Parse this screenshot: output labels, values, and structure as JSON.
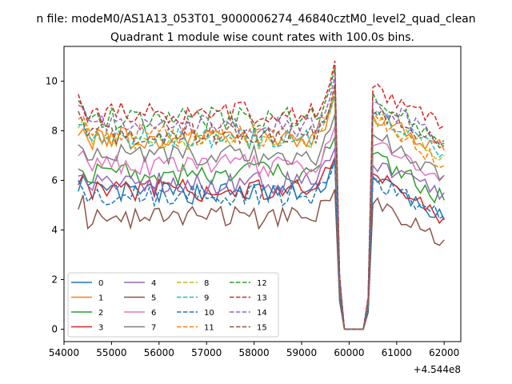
{
  "suptitle": "n file: modeM0/AS1A13_053T01_9000006274_46840cztM0_level2_quad_clean",
  "chart_data": {
    "type": "line",
    "title": "Quadrant 1 module wise count rates with 100.0s bins.",
    "xlabel": "",
    "ylabel": "",
    "x_offset_label": "+4.544e8",
    "xlim": [
      54000,
      62350
    ],
    "ylim": [
      -0.5,
      11.4
    ],
    "xticks": [
      54000,
      55000,
      56000,
      57000,
      58000,
      59000,
      60000,
      61000,
      62000
    ],
    "xtick_labels": [
      "54000",
      "55000",
      "56000",
      "57000",
      "58000",
      "59000",
      "60000",
      "61000",
      "62000"
    ],
    "yticks": [
      0,
      2,
      4,
      6,
      8,
      10
    ],
    "ytick_labels": [
      "0",
      "2",
      "4",
      "6",
      "8",
      "10"
    ],
    "grid": false,
    "legend_position": "lower-left",
    "legend_columns": 4,
    "series": [
      {
        "name": "0",
        "color": "#1f77b4",
        "dash": "solid",
        "base": 5.5,
        "end": 4.4
      },
      {
        "name": "1",
        "color": "#ff7f0e",
        "dash": "solid",
        "base": 7.7,
        "end": 7.2
      },
      {
        "name": "2",
        "color": "#2ca02c",
        "dash": "solid",
        "base": 6.3,
        "end": 5.2
      },
      {
        "name": "3",
        "color": "#d62728",
        "dash": "solid",
        "base": 5.6,
        "end": 4.5
      },
      {
        "name": "4",
        "color": "#9467bd",
        "dash": "solid",
        "base": 5.9,
        "end": 5.5
      },
      {
        "name": "5",
        "color": "#8c564b",
        "dash": "solid",
        "base": 4.5,
        "end": 3.6
      },
      {
        "name": "6",
        "color": "#e377c2",
        "dash": "solid",
        "base": 6.6,
        "end": 6.2
      },
      {
        "name": "7",
        "color": "#7f7f7f",
        "dash": "solid",
        "base": 7.0,
        "end": 6.2
      },
      {
        "name": "8",
        "color": "#bcbd22",
        "dash": "dashed",
        "base": 7.6,
        "end": 7.0
      },
      {
        "name": "9",
        "color": "#17becf",
        "dash": "dashed",
        "base": 7.7,
        "end": 7.1
      },
      {
        "name": "10",
        "color": "#1f77b4",
        "dash": "dashed",
        "base": 5.4,
        "end": 4.6
      },
      {
        "name": "11",
        "color": "#ff7f0e",
        "dash": "dashed",
        "base": 7.8,
        "end": 6.6
      },
      {
        "name": "12",
        "color": "#2ca02c",
        "dash": "dashed",
        "base": 8.5,
        "end": 7.5
      },
      {
        "name": "13",
        "color": "#d62728",
        "dash": "dashed",
        "base": 8.7,
        "end": 8.2
      },
      {
        "name": "14",
        "color": "#9467bd",
        "dash": "dashed",
        "base": 8.2,
        "end": 7.6
      },
      {
        "name": "15",
        "color": "#8c564b",
        "dash": "dashed",
        "base": 7.9,
        "end": 7.4
      }
    ]
  }
}
